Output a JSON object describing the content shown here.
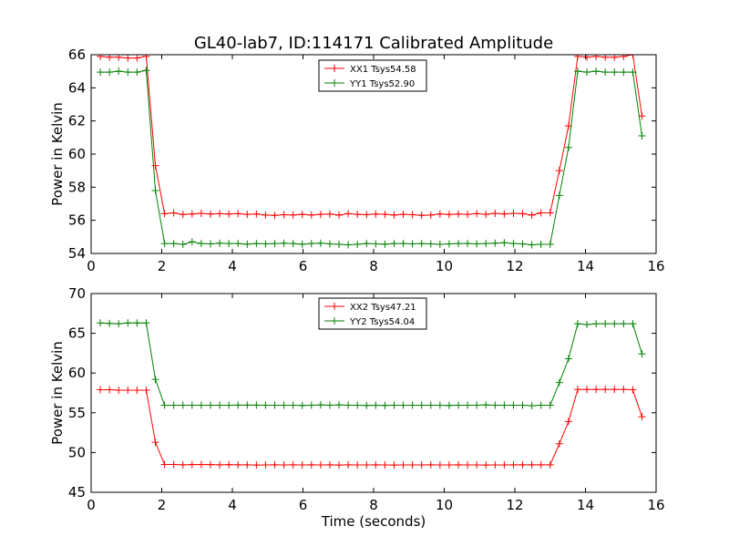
{
  "title": "GL40-lab7, ID:114171 Calibrated Amplitude",
  "chart_data": [
    {
      "type": "line",
      "ylabel": "Power in Kelvin",
      "xlabel": "",
      "xlim": [
        0,
        16
      ],
      "ylim": [
        54,
        66
      ],
      "xticks": [
        0,
        2,
        4,
        6,
        8,
        10,
        12,
        14,
        16
      ],
      "yticks": [
        54,
        56,
        58,
        60,
        62,
        64,
        66
      ],
      "legend_position": "upper center",
      "grid": false,
      "x": [
        0.26,
        0.52,
        0.78,
        1.04,
        1.3,
        1.56,
        1.82,
        2.08,
        2.34,
        2.6,
        2.86,
        3.12,
        3.38,
        3.64,
        3.9,
        4.16,
        4.42,
        4.68,
        4.94,
        5.2,
        5.46,
        5.72,
        5.98,
        6.24,
        6.5,
        6.76,
        7.02,
        7.28,
        7.54,
        7.8,
        8.06,
        8.32,
        8.58,
        8.84,
        9.1,
        9.36,
        9.62,
        9.88,
        10.14,
        10.4,
        10.66,
        10.92,
        11.18,
        11.44,
        11.7,
        11.96,
        12.22,
        12.48,
        12.74,
        13.0,
        13.26,
        13.52,
        13.78,
        14.04,
        14.3,
        14.56,
        14.82,
        15.08,
        15.34,
        15.6
      ],
      "series": [
        {
          "name": "XX1 Tsys54.58",
          "color": "#ff0000",
          "values": [
            65.9,
            65.85,
            65.85,
            65.8,
            65.8,
            65.9,
            59.3,
            56.4,
            56.45,
            56.35,
            56.38,
            56.42,
            56.38,
            56.4,
            56.38,
            56.4,
            56.36,
            56.38,
            56.32,
            56.3,
            56.34,
            56.32,
            56.36,
            56.32,
            56.36,
            56.38,
            56.32,
            56.4,
            56.36,
            56.34,
            56.38,
            56.36,
            56.32,
            56.36,
            56.34,
            56.3,
            56.32,
            56.38,
            56.35,
            56.38,
            56.36,
            56.4,
            56.36,
            56.42,
            56.38,
            56.42,
            56.4,
            56.32,
            56.45,
            56.45,
            59.0,
            61.7,
            65.9,
            65.85,
            65.9,
            65.85,
            65.85,
            65.9,
            66.0,
            62.3
          ]
        },
        {
          "name": "YY1 Tsys52.90",
          "color": "#008000",
          "values": [
            64.95,
            64.95,
            65.0,
            64.95,
            64.95,
            65.05,
            57.8,
            54.6,
            54.6,
            54.55,
            54.7,
            54.6,
            54.58,
            54.62,
            54.6,
            54.6,
            54.56,
            54.6,
            54.58,
            54.6,
            54.62,
            54.6,
            54.56,
            54.6,
            54.62,
            54.58,
            54.55,
            54.52,
            54.55,
            54.6,
            54.58,
            54.56,
            54.6,
            54.6,
            54.58,
            54.6,
            54.58,
            54.55,
            54.58,
            54.6,
            54.6,
            54.58,
            54.6,
            54.62,
            54.65,
            54.6,
            54.58,
            54.52,
            54.55,
            54.55,
            57.5,
            60.4,
            65.0,
            64.95,
            65.0,
            64.95,
            64.95,
            64.95,
            64.95,
            61.1
          ]
        }
      ]
    },
    {
      "type": "line",
      "ylabel": "Power in Kelvin",
      "xlabel": "Time (seconds)",
      "xlim": [
        0,
        16
      ],
      "ylim": [
        45,
        70
      ],
      "xticks": [
        0,
        2,
        4,
        6,
        8,
        10,
        12,
        14,
        16
      ],
      "yticks": [
        45,
        50,
        55,
        60,
        65,
        70
      ],
      "legend_position": "upper center",
      "grid": false,
      "x": [
        0.26,
        0.52,
        0.78,
        1.04,
        1.3,
        1.56,
        1.82,
        2.08,
        2.34,
        2.6,
        2.86,
        3.12,
        3.38,
        3.64,
        3.9,
        4.16,
        4.42,
        4.68,
        4.94,
        5.2,
        5.46,
        5.72,
        5.98,
        6.24,
        6.5,
        6.76,
        7.02,
        7.28,
        7.54,
        7.8,
        8.06,
        8.32,
        8.58,
        8.84,
        9.1,
        9.36,
        9.62,
        9.88,
        10.14,
        10.4,
        10.66,
        10.92,
        11.18,
        11.44,
        11.7,
        11.96,
        12.22,
        12.48,
        12.74,
        13.0,
        13.26,
        13.52,
        13.78,
        14.04,
        14.3,
        14.56,
        14.82,
        15.08,
        15.34,
        15.6
      ],
      "series": [
        {
          "name": "XX2 Tsys47.21",
          "color": "#ff0000",
          "values": [
            57.9,
            57.9,
            57.85,
            57.85,
            57.85,
            57.85,
            51.3,
            48.5,
            48.5,
            48.45,
            48.48,
            48.5,
            48.48,
            48.46,
            48.48,
            48.46,
            48.45,
            48.42,
            48.44,
            48.45,
            48.44,
            48.45,
            48.44,
            48.46,
            48.44,
            48.45,
            48.42,
            48.45,
            48.44,
            48.44,
            48.45,
            48.44,
            48.42,
            48.44,
            48.44,
            48.44,
            48.45,
            48.44,
            48.44,
            48.45,
            48.44,
            48.44,
            48.42,
            48.44,
            48.44,
            48.45,
            48.45,
            48.46,
            48.46,
            48.46,
            51.1,
            53.9,
            57.95,
            57.95,
            57.95,
            57.95,
            57.95,
            57.95,
            57.9,
            54.5
          ]
        },
        {
          "name": "YY2 Tsys54.04",
          "color": "#008000",
          "values": [
            66.3,
            66.25,
            66.2,
            66.3,
            66.3,
            66.3,
            59.2,
            55.95,
            55.95,
            55.95,
            55.95,
            55.95,
            55.95,
            55.95,
            55.95,
            55.97,
            55.97,
            55.97,
            55.95,
            55.95,
            55.95,
            55.95,
            55.93,
            55.95,
            56.0,
            55.95,
            56.0,
            55.95,
            55.95,
            55.93,
            55.95,
            55.93,
            55.95,
            55.95,
            55.95,
            55.95,
            55.95,
            55.95,
            55.93,
            55.95,
            55.95,
            55.95,
            56.0,
            55.95,
            55.95,
            55.95,
            55.95,
            55.9,
            55.95,
            55.95,
            58.8,
            61.8,
            66.2,
            66.1,
            66.2,
            66.2,
            66.2,
            66.2,
            66.2,
            62.4
          ]
        }
      ]
    }
  ]
}
